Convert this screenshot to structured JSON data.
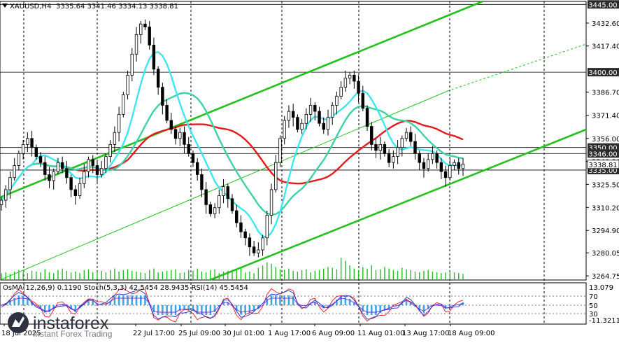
{
  "chart_data": {
    "type": "candlestick",
    "symbol_header": "XAUUSD,H4",
    "ohlc_header": "3335.64 3341.46 3334.13 3338.81",
    "y_axis_ticks": [
      "3432.60",
      "3417.40",
      "3386.70",
      "3371.40",
      "3356.00",
      "3340.80",
      "3325.50",
      "3310.20",
      "3294.90",
      "3280.05",
      "3264.75"
    ],
    "ylim": [
      3262,
      3447
    ],
    "x_axis_ticks": [
      "18 Jul 2025",
      "22 Jul 17:00",
      "25 Jul 09:00",
      "30 Jul 01:00",
      "1 Aug 17:00",
      "6 Aug 09:00",
      "11 Aug 01:00",
      "13 Aug 17:00",
      "18 Aug 09:00"
    ],
    "level_lines": [
      {
        "value": 3445.0,
        "label": "3445.00"
      },
      {
        "value": 3400.0,
        "label": "3400.00"
      },
      {
        "value": 3350.0,
        "label": "3350.00"
      },
      {
        "value": 3346.0,
        "label": "3346.00"
      },
      {
        "value": 3335.0,
        "label": "3335.00"
      }
    ],
    "current_price": {
      "value": 3338.81,
      "label": "3338.81"
    },
    "indicators_header": "OsMA(12,26,9) 0.1190  Stoch(5,3,3) 42.5454 28.9435  RSI(14) 45.5454",
    "indicator_scale": [
      "13.079",
      "70",
      "50",
      "30",
      "-11.3211"
    ],
    "watermark_brand": "instaforex",
    "watermark_tagline": "Instant Forex Trading",
    "colors": {
      "candles": "#000000",
      "channel": "#22c21c",
      "ema_red": "#e21b1b",
      "ma_teal": "#3ed0a8",
      "ma_cyan": "#3ee6f0",
      "volume": "#1fbf1f",
      "osma": "#3ea5e8",
      "stoch_main": "#1a2ed6",
      "stoch_signal": "#e21b1b",
      "rsi": "#7a2ad6",
      "price_box": "#2b2b2b"
    },
    "closes": [
      3315,
      3322,
      3330,
      3338,
      3346,
      3352,
      3356,
      3350,
      3344,
      3340,
      3332,
      3328,
      3334,
      3340,
      3336,
      3330,
      3322,
      3318,
      3326,
      3334,
      3342,
      3338,
      3332,
      3336,
      3344,
      3352,
      3360,
      3372,
      3385,
      3398,
      3412,
      3425,
      3432,
      3430,
      3418,
      3402,
      3390,
      3378,
      3368,
      3362,
      3356,
      3360,
      3352,
      3346,
      3340,
      3332,
      3322,
      3312,
      3306,
      3310,
      3318,
      3324,
      3316,
      3308,
      3300,
      3294,
      3290,
      3284,
      3280,
      3282,
      3290,
      3305,
      3322,
      3340,
      3356,
      3368,
      3374,
      3370,
      3362,
      3366,
      3372,
      3378,
      3374,
      3366,
      3362,
      3370,
      3378,
      3384,
      3390,
      3396,
      3398,
      3394,
      3386,
      3376,
      3364,
      3352,
      3348,
      3352,
      3346,
      3340,
      3344,
      3350,
      3356,
      3360,
      3354,
      3346,
      3340,
      3336,
      3342,
      3346,
      3340,
      3334,
      3330,
      3338,
      3340,
      3336,
      3339
    ],
    "volumes": [
      8,
      9,
      7,
      10,
      12,
      9,
      8,
      11,
      10,
      9,
      13,
      9,
      8,
      12,
      14,
      11,
      9,
      10,
      8,
      12,
      13,
      9,
      10,
      11,
      9,
      12,
      14,
      10,
      12,
      13,
      11,
      10,
      9,
      8,
      12,
      14,
      9,
      10,
      11,
      12,
      13,
      8,
      9,
      12,
      11,
      14,
      10,
      9,
      12,
      13,
      8,
      10,
      11,
      12,
      13,
      14,
      9,
      10,
      8,
      15,
      18,
      22,
      20,
      16,
      13,
      12,
      14,
      11,
      10,
      12,
      13,
      9,
      11,
      12,
      14,
      16,
      15,
      13,
      28,
      24,
      18,
      14,
      12,
      16,
      14,
      18,
      12,
      13,
      16,
      14,
      12,
      11,
      15,
      13,
      12,
      10,
      9,
      11,
      12,
      10,
      9,
      8,
      9,
      10,
      9,
      8,
      7
    ]
  }
}
